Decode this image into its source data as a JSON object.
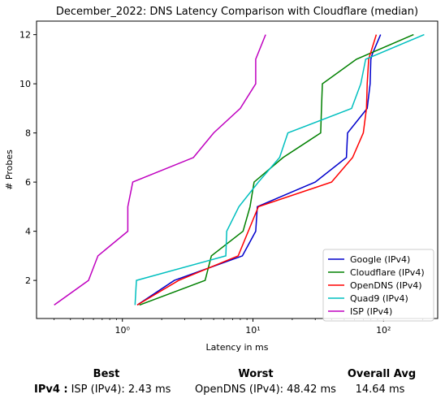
{
  "chart_data": {
    "type": "line",
    "title": "December_2022: DNS Latency Comparison with Cloudflare (median)",
    "xlabel": "Latency in ms",
    "ylabel": "# Probes",
    "xscale": "log",
    "xlim": [
      0.22,
      260
    ],
    "ylim": [
      0.45,
      12.55
    ],
    "xticks": [
      {
        "value": 1,
        "label": "10⁰"
      },
      {
        "value": 10,
        "label": "10¹"
      },
      {
        "value": 100,
        "label": "10²"
      }
    ],
    "yticks": [
      2,
      4,
      6,
      8,
      10,
      12
    ],
    "legend_position": "lower-right",
    "grid": false,
    "series": [
      {
        "name": "Google (IPv4)",
        "color": "#0000cc",
        "points": [
          [
            1.3,
            1
          ],
          [
            2.5,
            2
          ],
          [
            8.3,
            3
          ],
          [
            10.5,
            4
          ],
          [
            10.8,
            5
          ],
          [
            30,
            6
          ],
          [
            52,
            7
          ],
          [
            53,
            8
          ],
          [
            75,
            9
          ],
          [
            79,
            10
          ],
          [
            80,
            11
          ],
          [
            82,
            11.2
          ],
          [
            95,
            12
          ]
        ]
      },
      {
        "name": "Cloudflare (IPv4)",
        "color": "#008000",
        "points": [
          [
            1.35,
            1
          ],
          [
            4.3,
            2
          ],
          [
            4.8,
            3
          ],
          [
            8.4,
            4
          ],
          [
            9.5,
            5
          ],
          [
            10.2,
            6
          ],
          [
            17,
            7
          ],
          [
            33,
            8
          ],
          [
            33.5,
            9
          ],
          [
            34,
            10
          ],
          [
            62,
            11
          ],
          [
            170,
            12
          ]
        ]
      },
      {
        "name": "OpenDNS (IPv4)",
        "color": "#ff0000",
        "points": [
          [
            1.3,
            1
          ],
          [
            2.7,
            2
          ],
          [
            7.7,
            3
          ],
          [
            11,
            5
          ],
          [
            40,
            6
          ],
          [
            58,
            7
          ],
          [
            70,
            8
          ],
          [
            74,
            9
          ],
          [
            75,
            10
          ],
          [
            77,
            11
          ],
          [
            88,
            12
          ]
        ]
      },
      {
        "name": "Quad9 (IPv4)",
        "color": "#00bfbf",
        "points": [
          [
            1.25,
            1
          ],
          [
            1.28,
            2
          ],
          [
            6.2,
            3
          ],
          [
            6.3,
            4
          ],
          [
            7.8,
            5
          ],
          [
            11,
            6
          ],
          [
            16,
            7
          ],
          [
            18.5,
            8
          ],
          [
            57,
            9
          ],
          [
            67,
            10
          ],
          [
            73,
            11
          ],
          [
            205,
            12
          ]
        ]
      },
      {
        "name": "ISP (IPv4)",
        "color": "#bf00bf",
        "points": [
          [
            0.3,
            1
          ],
          [
            0.55,
            2
          ],
          [
            0.65,
            3
          ],
          [
            1.1,
            4
          ],
          [
            1.1,
            5
          ],
          [
            1.2,
            6
          ],
          [
            3.5,
            7
          ],
          [
            5,
            8
          ],
          [
            8,
            9
          ],
          [
            10.5,
            10
          ],
          [
            10.5,
            11
          ],
          [
            12.5,
            12
          ]
        ]
      }
    ]
  },
  "summary": {
    "headers": {
      "best": "Best",
      "worst": "Worst",
      "overall": "Overall Avg"
    },
    "row_label": "IPv4 :",
    "best": "ISP (IPv4): 2.43 ms",
    "worst": "OpenDNS (IPv4): 48.42 ms",
    "overall": "14.64 ms"
  }
}
